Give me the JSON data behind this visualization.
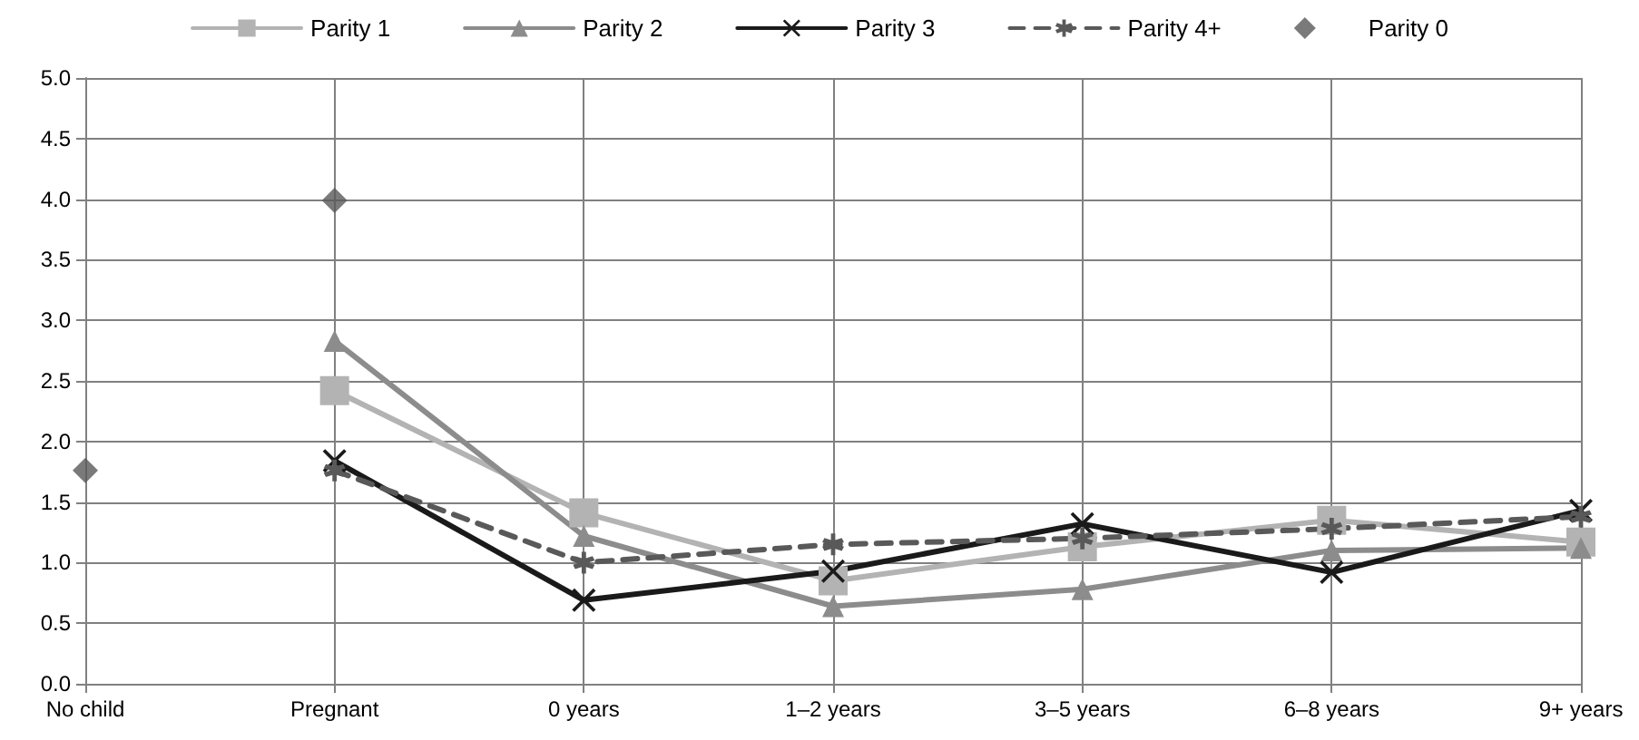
{
  "chart_data": {
    "type": "line",
    "categories": [
      "No child",
      "Pregnant",
      "0 years",
      "1–2 years",
      "3–5 years",
      "6–8 years",
      "9+ years"
    ],
    "series": [
      {
        "name": "Parity 1",
        "color": "#b3b3b3",
        "marker": "square",
        "line_style": "solid",
        "values": [
          null,
          2.42,
          1.41,
          0.85,
          1.13,
          1.35,
          1.17
        ]
      },
      {
        "name": "Parity 2",
        "color": "#8c8c8c",
        "marker": "triangle",
        "line_style": "solid",
        "values": [
          null,
          2.83,
          1.22,
          0.64,
          0.78,
          1.1,
          1.12
        ]
      },
      {
        "name": "Parity 3",
        "color": "#1a1a1a",
        "marker": "cross",
        "line_style": "solid",
        "values": [
          null,
          1.84,
          0.69,
          0.93,
          1.32,
          0.92,
          1.43
        ]
      },
      {
        "name": "Parity 4+",
        "color": "#595959",
        "marker": "star",
        "line_style": "dashed",
        "values": [
          null,
          1.76,
          1.0,
          1.15,
          1.2,
          1.28,
          1.38
        ]
      },
      {
        "name": "Parity 0",
        "type": "scatter",
        "color": "#595959",
        "marker": "diamond",
        "values": [
          1.76,
          3.99,
          null,
          null,
          null,
          null,
          null
        ]
      }
    ],
    "ylim": [
      0,
      5
    ],
    "yticks": [
      {
        "value": 0,
        "label": "0.0"
      },
      {
        "value": 0.5,
        "label": "0.5"
      },
      {
        "value": 1,
        "label": "1.0"
      },
      {
        "value": 1.5,
        "label": "1.5"
      },
      {
        "value": 2,
        "label": "2.0"
      },
      {
        "value": 2.5,
        "label": "2.5"
      },
      {
        "value": 3,
        "label": "3.0"
      },
      {
        "value": 3.5,
        "label": "3.5"
      },
      {
        "value": 4,
        "label": "4.0"
      },
      {
        "value": 4.5,
        "label": "4.5"
      },
      {
        "value": 5,
        "label": "5.0"
      }
    ],
    "grid": true,
    "legend": "top"
  }
}
